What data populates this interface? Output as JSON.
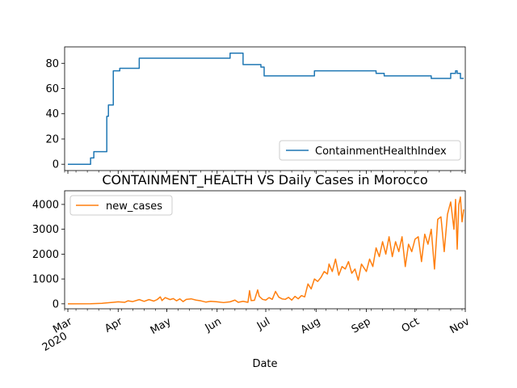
{
  "chart_data": [
    {
      "type": "line",
      "title": "",
      "xlabel": "",
      "ylabel": "",
      "ylim": [
        -5,
        93
      ],
      "yticks": [
        0,
        20,
        40,
        60,
        80
      ],
      "legend_position": "lower-right",
      "series": [
        {
          "name": "ContainmentHealthIndex",
          "color": "#1f77b4",
          "step": true,
          "points": [
            [
              "2020-03-01",
              0
            ],
            [
              "2020-03-15",
              5
            ],
            [
              "2020-03-17",
              10
            ],
            [
              "2020-03-25",
              38
            ],
            [
              "2020-03-26",
              47
            ],
            [
              "2020-03-29",
              74
            ],
            [
              "2020-04-02",
              76
            ],
            [
              "2020-04-14",
              84
            ],
            [
              "2020-06-09",
              88
            ],
            [
              "2020-06-17",
              79
            ],
            [
              "2020-06-28",
              77
            ],
            [
              "2020-06-30",
              70
            ],
            [
              "2020-07-31",
              74
            ],
            [
              "2020-09-07",
              72
            ],
            [
              "2020-09-12",
              70
            ],
            [
              "2020-10-11",
              68
            ],
            [
              "2020-10-23",
              72
            ],
            [
              "2020-10-26",
              74
            ],
            [
              "2020-10-27",
              72
            ],
            [
              "2020-10-29",
              68
            ],
            [
              "2020-10-31",
              68
            ]
          ]
        }
      ]
    },
    {
      "type": "line",
      "title": "CONTAINMENT_HEALTH VS Daily Cases in Morocco",
      "xlabel": "Date",
      "ylabel": "",
      "ylim": [
        -200,
        4550
      ],
      "yticks": [
        0,
        1000,
        2000,
        3000,
        4000
      ],
      "legend_position": "upper-left",
      "series": [
        {
          "name": "new_cases",
          "color": "#ff7f0e",
          "points": [
            [
              "2020-03-01",
              0
            ],
            [
              "2020-03-15",
              5
            ],
            [
              "2020-03-22",
              20
            ],
            [
              "2020-03-29",
              60
            ],
            [
              "2020-04-01",
              80
            ],
            [
              "2020-04-05",
              60
            ],
            [
              "2020-04-07",
              120
            ],
            [
              "2020-04-10",
              90
            ],
            [
              "2020-04-14",
              170
            ],
            [
              "2020-04-17",
              100
            ],
            [
              "2020-04-20",
              170
            ],
            [
              "2020-04-23",
              110
            ],
            [
              "2020-04-25",
              170
            ],
            [
              "2020-04-27",
              280
            ],
            [
              "2020-04-28",
              130
            ],
            [
              "2020-04-30",
              250
            ],
            [
              "2020-05-03",
              170
            ],
            [
              "2020-05-05",
              210
            ],
            [
              "2020-05-07",
              120
            ],
            [
              "2020-05-09",
              200
            ],
            [
              "2020-05-11",
              90
            ],
            [
              "2020-05-13",
              180
            ],
            [
              "2020-05-16",
              200
            ],
            [
              "2020-05-19",
              150
            ],
            [
              "2020-05-22",
              120
            ],
            [
              "2020-05-25",
              70
            ],
            [
              "2020-05-28",
              100
            ],
            [
              "2020-06-01",
              80
            ],
            [
              "2020-06-05",
              50
            ],
            [
              "2020-06-09",
              80
            ],
            [
              "2020-06-12",
              150
            ],
            [
              "2020-06-14",
              60
            ],
            [
              "2020-06-17",
              100
            ],
            [
              "2020-06-20",
              60
            ],
            [
              "2020-06-21",
              530
            ],
            [
              "2020-06-22",
              130
            ],
            [
              "2020-06-24",
              140
            ],
            [
              "2020-06-26",
              560
            ],
            [
              "2020-06-27",
              300
            ],
            [
              "2020-06-29",
              180
            ],
            [
              "2020-07-01",
              150
            ],
            [
              "2020-07-03",
              250
            ],
            [
              "2020-07-05",
              180
            ],
            [
              "2020-07-07",
              500
            ],
            [
              "2020-07-09",
              270
            ],
            [
              "2020-07-11",
              200
            ],
            [
              "2020-07-13",
              180
            ],
            [
              "2020-07-15",
              260
            ],
            [
              "2020-07-17",
              150
            ],
            [
              "2020-07-19",
              300
            ],
            [
              "2020-07-21",
              200
            ],
            [
              "2020-07-23",
              330
            ],
            [
              "2020-07-25",
              280
            ],
            [
              "2020-07-27",
              800
            ],
            [
              "2020-07-29",
              600
            ],
            [
              "2020-07-31",
              1000
            ],
            [
              "2020-08-02",
              900
            ],
            [
              "2020-08-04",
              1060
            ],
            [
              "2020-08-06",
              1300
            ],
            [
              "2020-08-08",
              1200
            ],
            [
              "2020-08-09",
              1600
            ],
            [
              "2020-08-11",
              1300
            ],
            [
              "2020-08-13",
              1800
            ],
            [
              "2020-08-15",
              1150
            ],
            [
              "2020-08-17",
              1500
            ],
            [
              "2020-08-19",
              1400
            ],
            [
              "2020-08-21",
              1700
            ],
            [
              "2020-08-23",
              1230
            ],
            [
              "2020-08-25",
              1400
            ],
            [
              "2020-08-27",
              950
            ],
            [
              "2020-08-29",
              1600
            ],
            [
              "2020-09-01",
              1300
            ],
            [
              "2020-09-03",
              1800
            ],
            [
              "2020-09-05",
              1500
            ],
            [
              "2020-09-07",
              2250
            ],
            [
              "2020-09-09",
              1900
            ],
            [
              "2020-09-11",
              2500
            ],
            [
              "2020-09-13",
              2000
            ],
            [
              "2020-09-15",
              2700
            ],
            [
              "2020-09-17",
              1900
            ],
            [
              "2020-09-19",
              2500
            ],
            [
              "2020-09-21",
              2100
            ],
            [
              "2020-09-23",
              2700
            ],
            [
              "2020-09-25",
              1500
            ],
            [
              "2020-09-27",
              2400
            ],
            [
              "2020-09-29",
              2100
            ],
            [
              "2020-10-01",
              2600
            ],
            [
              "2020-10-03",
              2700
            ],
            [
              "2020-10-05",
              1700
            ],
            [
              "2020-10-07",
              2800
            ],
            [
              "2020-10-09",
              2400
            ],
            [
              "2020-10-11",
              3000
            ],
            [
              "2020-10-13",
              1400
            ],
            [
              "2020-10-15",
              3400
            ],
            [
              "2020-10-17",
              3500
            ],
            [
              "2020-10-19",
              2100
            ],
            [
              "2020-10-21",
              3600
            ],
            [
              "2020-10-23",
              4100
            ],
            [
              "2020-10-25",
              3000
            ],
            [
              "2020-10-26",
              4200
            ],
            [
              "2020-10-27",
              2200
            ],
            [
              "2020-10-28",
              4000
            ],
            [
              "2020-10-29",
              4300
            ],
            [
              "2020-10-30",
              3300
            ],
            [
              "2020-10-31",
              3800
            ]
          ]
        }
      ],
      "xlim": [
        "2020-02-28",
        "2020-11-01"
      ],
      "xticks": [
        {
          "date": "2020-03-01",
          "label": "Mar",
          "sublabel": "2020"
        },
        {
          "date": "2020-04-01",
          "label": "Apr"
        },
        {
          "date": "2020-05-01",
          "label": "May"
        },
        {
          "date": "2020-06-01",
          "label": "Jun"
        },
        {
          "date": "2020-07-01",
          "label": "Jul"
        },
        {
          "date": "2020-08-01",
          "label": "Aug"
        },
        {
          "date": "2020-09-01",
          "label": "Sep"
        },
        {
          "date": "2020-10-01",
          "label": "Oct"
        },
        {
          "date": "2020-11-01",
          "label": "Nov"
        }
      ]
    }
  ]
}
